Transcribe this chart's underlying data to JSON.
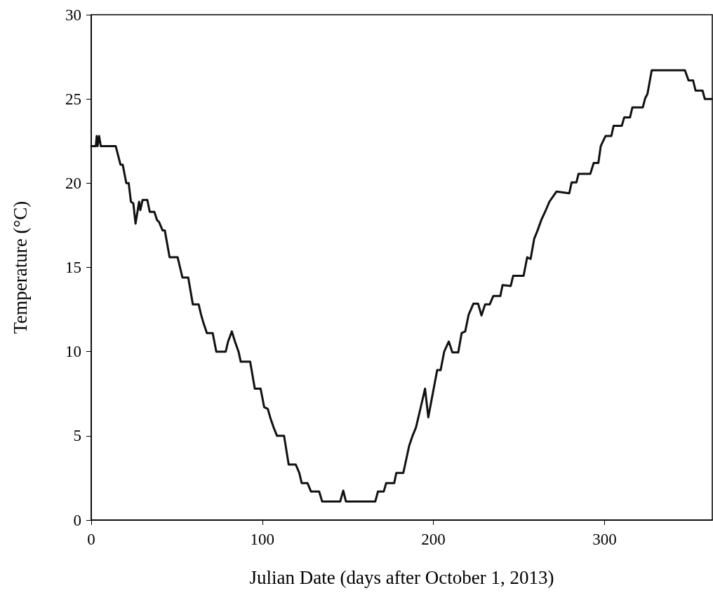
{
  "chart_data": {
    "type": "line",
    "xlabel": "Julian Date (days after October 1, 2013)",
    "ylabel": "Temperature (°C)",
    "xlim": [
      0,
      363
    ],
    "xticks": [
      0,
      100,
      200,
      300
    ],
    "ylim": [
      0,
      30
    ],
    "yticks": [
      0,
      5,
      10,
      15,
      20,
      25,
      30
    ],
    "grid": false,
    "series": [
      {
        "color": "#111111",
        "x": [
          0,
          2.7,
          3.2,
          3.7,
          4.6,
          5.6,
          14.3,
          17.1,
          18.4,
          20.5,
          21.9,
          23.2,
          24.6,
          25.9,
          28.0,
          28.7,
          30.0,
          32.8,
          34.2,
          36.9,
          38.5,
          39.6,
          41.7,
          43.0,
          45.8,
          50.5,
          51.9,
          53.3,
          56.7,
          59.4,
          62.8,
          64.2,
          65.6,
          67.6,
          71.0,
          73.1,
          78.6,
          80.0,
          82.2,
          84.0,
          86.1,
          87.4,
          92.9,
          95.6,
          99.0,
          101.1,
          103.2,
          104.6,
          106.6,
          108.6,
          112.7,
          115.4,
          119.5,
          121.6,
          123.0,
          126.4,
          128.4,
          133.2,
          135.0,
          145.5,
          147.3,
          148.9,
          166.0,
          167.6,
          171.0,
          172.4,
          177.1,
          178.3,
          182.4,
          185.8,
          187.8,
          189.8,
          192.6,
          195.1,
          197.0,
          202.2,
          204.2,
          206.3,
          209.0,
          211.1,
          214.5,
          216.5,
          218.6,
          220.6,
          223.4,
          226.1,
          228.1,
          230.2,
          232.9,
          235.0,
          239.1,
          240.4,
          245.2,
          246.6,
          252.7,
          254.8,
          256.8,
          258.9,
          260.9,
          263.0,
          265.7,
          267.8,
          271.9,
          279.4,
          280.8,
          283.6,
          284.8,
          291.7,
          293.7,
          296.4,
          297.8,
          300.6,
          304.0,
          305.3,
          310.1,
          311.5,
          314.9,
          316.3,
          322.4,
          323.8,
          325.1,
          327.6,
          347.0,
          349.1,
          351.8,
          353.2,
          357.3,
          358.6,
          362.7
        ],
        "values": [
          22.2,
          22.2,
          22.8,
          22.2,
          22.8,
          22.2,
          22.2,
          21.1,
          21.1,
          20.0,
          20.0,
          18.9,
          18.8,
          17.6,
          18.9,
          18.4,
          19.0,
          19.0,
          18.3,
          18.3,
          17.8,
          17.7,
          17.2,
          17.2,
          15.6,
          15.6,
          15.0,
          14.4,
          14.4,
          12.8,
          12.8,
          12.2,
          11.7,
          11.1,
          11.1,
          10.0,
          10.0,
          10.6,
          11.2,
          10.6,
          10.0,
          9.4,
          9.4,
          7.8,
          7.8,
          6.7,
          6.6,
          6.1,
          5.5,
          5.0,
          5.0,
          3.3,
          3.3,
          2.8,
          2.2,
          2.2,
          1.7,
          1.7,
          1.1,
          1.1,
          1.75,
          1.1,
          1.1,
          1.7,
          1.7,
          2.2,
          2.2,
          2.8,
          2.8,
          4.4,
          5.0,
          5.5,
          6.7,
          7.8,
          6.1,
          8.9,
          8.9,
          10.0,
          10.6,
          9.95,
          9.95,
          11.1,
          11.2,
          12.2,
          12.85,
          12.85,
          12.15,
          12.8,
          12.8,
          13.3,
          13.3,
          13.95,
          13.9,
          14.5,
          14.5,
          15.6,
          15.5,
          16.7,
          17.2,
          17.8,
          18.4,
          18.9,
          19.5,
          19.4,
          20.05,
          20.05,
          20.55,
          20.55,
          21.2,
          21.2,
          22.2,
          22.8,
          22.8,
          23.4,
          23.4,
          23.9,
          23.9,
          24.5,
          24.5,
          25.05,
          25.3,
          26.7,
          26.7,
          26.1,
          26.1,
          25.5,
          25.5,
          25.0,
          25.0
        ]
      }
    ]
  }
}
